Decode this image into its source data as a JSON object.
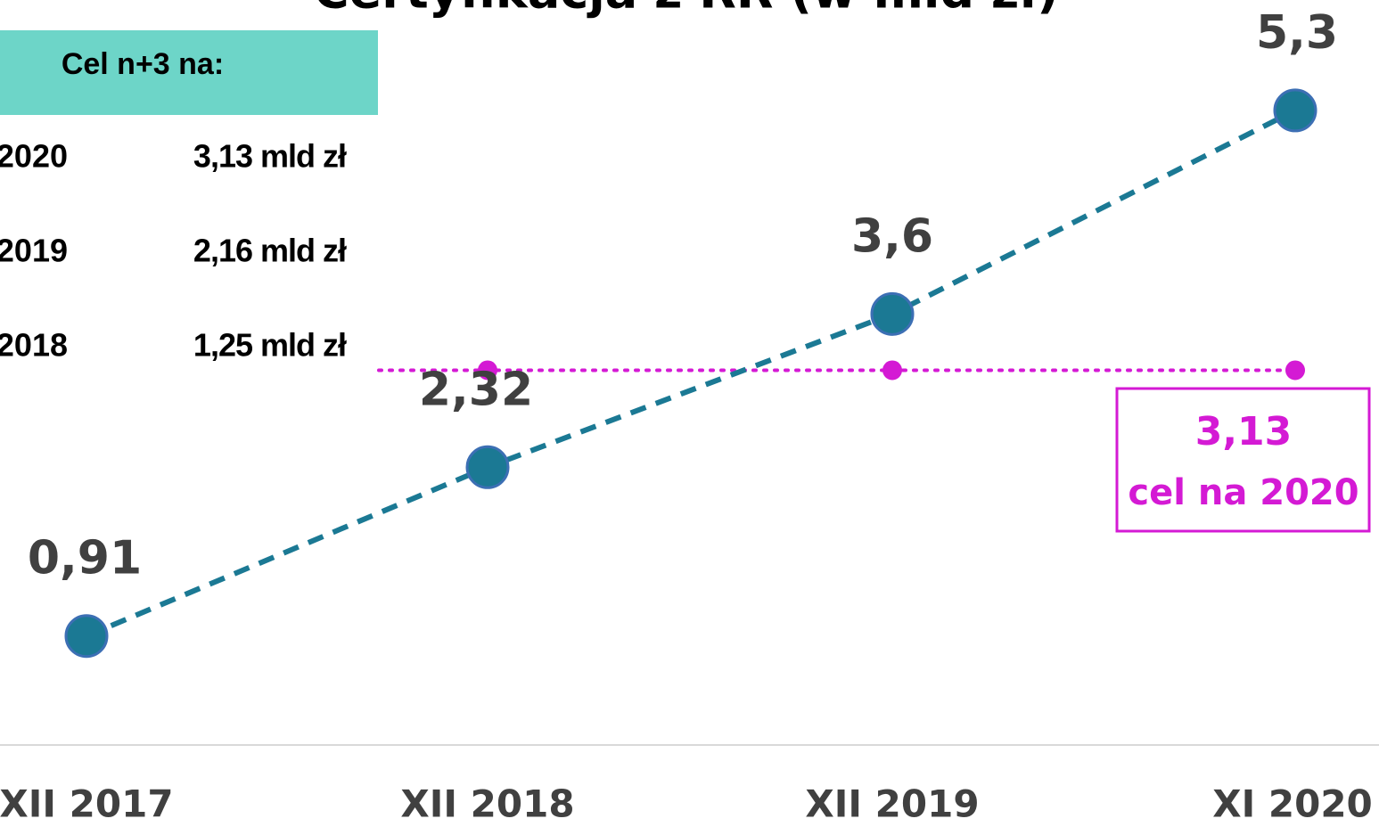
{
  "chart_data": {
    "type": "line",
    "title": "Certyfikacja z RR (w mld zł)",
    "categories": [
      "XII 2017",
      "XII 2018",
      "XII 2019",
      "XI 2020"
    ],
    "series": [
      {
        "name": "Certyfikacja",
        "color": "#1b7994",
        "values": [
          0.91,
          2.32,
          3.6,
          5.3
        ],
        "value_labels": [
          "0,91",
          "2,32",
          "3,6",
          "5,3"
        ]
      }
    ],
    "target": {
      "color": "#d41ad4",
      "values": [
        null,
        3.13,
        3.13,
        3.13
      ],
      "value_label": "3,13",
      "label": "cel na 2020"
    },
    "target_table": {
      "header": "Cel n+3 na:",
      "rows": [
        [
          "2020",
          "3,13 mld zł"
        ],
        [
          "2019",
          "2,16 mld zł"
        ],
        [
          "2018",
          "1,25 mld zł"
        ]
      ]
    },
    "ylim": [
      0,
      6.2
    ]
  }
}
